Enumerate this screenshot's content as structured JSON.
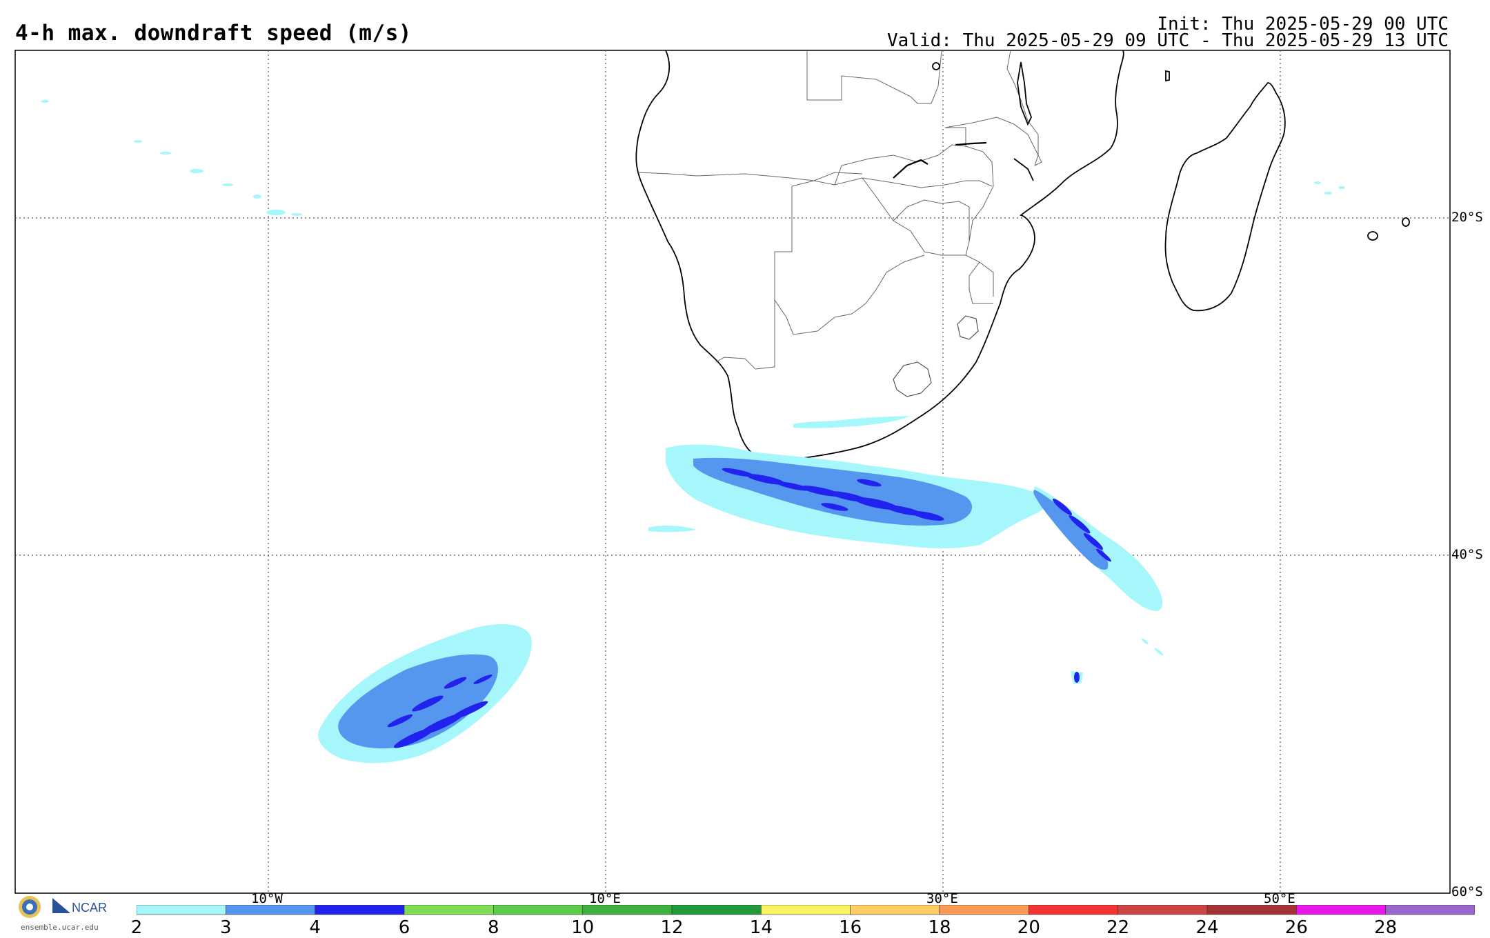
{
  "title": "4-h max. downdraft speed (m/s)",
  "init": "Init: Thu 2025-05-29 00 UTC",
  "valid": "Valid: Thu 2025-05-29 09 UTC - Thu 2025-05-29 13 UTC",
  "map": {
    "lon_labels": [
      "10°W",
      "10°E",
      "30°E",
      "50°E"
    ],
    "lat_labels": [
      "20°S",
      "40°S",
      "60°S"
    ],
    "gridlines": "dotted"
  },
  "logo": {
    "org": "NCAR",
    "url": "ensemble.ucar.edu"
  },
  "colorbar": {
    "ticks": [
      "2",
      "3",
      "4",
      "6",
      "8",
      "10",
      "12",
      "14",
      "16",
      "18",
      "20",
      "22",
      "24",
      "26",
      "28"
    ],
    "colors": [
      "#a6f7fb",
      "#5597ee",
      "#2222ee",
      "#7fdd55",
      "#5ccb4a",
      "#3cb13f",
      "#22993a",
      "#f9f463",
      "#ffcc66",
      "#fa9a55",
      "#f43333",
      "#cc4444",
      "#a53333",
      "#e818e8",
      "#9a66cc"
    ]
  }
}
